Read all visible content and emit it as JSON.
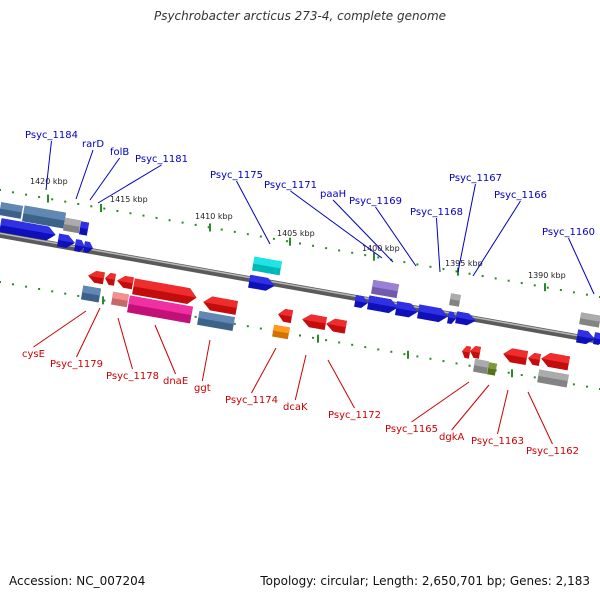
{
  "title": "Psychrobacter arcticus 273-4, complete genome",
  "footer": {
    "accession": "Accession: NC_007204",
    "summary": "Topology: circular; Length: 2,650,701 bp; Genes: 2,183"
  },
  "colors": {
    "forward_label": "#0000c0",
    "reverse_label": "#cc0000",
    "tick": "#2a8a2a",
    "backbone": "#6a6a6a"
  },
  "scale_labels": [
    "1420 kbp",
    "1415 kbp",
    "1410 kbp",
    "1405 kbp",
    "1400 kbp",
    "1395 kbp",
    "1390 kbp"
  ],
  "forward_labels": [
    "Psyc_1184",
    "rarD",
    "folB",
    "Psyc_1181",
    "Psyc_1175",
    "Psyc_1171",
    "paaH",
    "Psyc_1169",
    "Psyc_1168",
    "Psyc_1167",
    "Psyc_1166",
    "Psyc_1160"
  ],
  "reverse_labels": [
    "cysE",
    "Psyc_1179",
    "Psyc_1178",
    "dnaE",
    "ggt",
    "Psyc_1174",
    "dcaK",
    "Psyc_1172",
    "Psyc_1165",
    "dgkA",
    "Psyc_1163",
    "Psyc_1162"
  ]
}
